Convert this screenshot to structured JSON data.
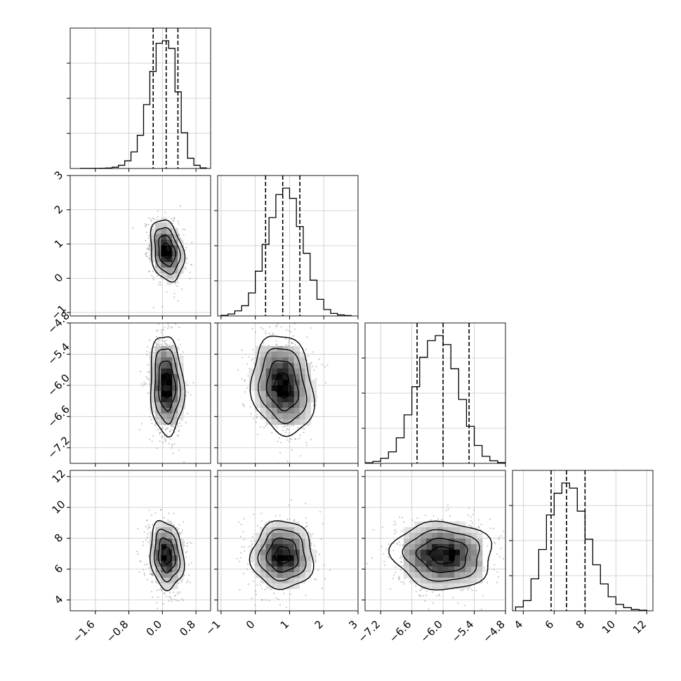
{
  "chart_data": {
    "type": "corner",
    "grid": true,
    "parameters": [
      {
        "range": [
          -2.2,
          1.15
        ],
        "ticks": [
          -1.6,
          -0.8,
          0.0,
          0.8
        ],
        "tick_labels": [
          "−1.6",
          "−0.8",
          "0.0",
          "0.8"
        ],
        "quantiles": [
          -0.22,
          0.09,
          0.37
        ],
        "hist_bins": [
          -1.95,
          -1.8,
          -1.65,
          -1.5,
          -1.35,
          -1.2,
          -1.05,
          -0.9,
          -0.75,
          -0.6,
          -0.45,
          -0.3,
          -0.15,
          0.0,
          0.15,
          0.3,
          0.45,
          0.6,
          0.75,
          0.9,
          1.05
        ],
        "hist_counts": [
          1,
          1,
          1,
          2,
          4,
          10,
          25,
          60,
          130,
          260,
          500,
          760,
          980,
          1000,
          940,
          600,
          280,
          80,
          25,
          5
        ],
        "center": 0.1,
        "spread": 0.2
      },
      {
        "range": [
          -1.1,
          3.0
        ],
        "ticks": [
          -1,
          0,
          1,
          2,
          3
        ],
        "tick_labels": [
          "−1",
          "0",
          "1",
          "2",
          "3"
        ],
        "quantiles": [
          0.3,
          0.8,
          1.3
        ],
        "hist_bins": [
          -1.0,
          -0.8,
          -0.6,
          -0.4,
          -0.2,
          0.0,
          0.2,
          0.4,
          0.6,
          0.8,
          1.0,
          1.2,
          1.4,
          1.6,
          1.8,
          2.0,
          2.2,
          2.4,
          2.6,
          2.8
        ],
        "hist_counts": [
          5,
          15,
          40,
          80,
          180,
          350,
          560,
          770,
          950,
          1000,
          920,
          700,
          490,
          280,
          130,
          50,
          20,
          8,
          3
        ],
        "center": 0.8,
        "spread": 0.45
      },
      {
        "range": [
          -7.5,
          -4.8
        ],
        "ticks": [
          -7.2,
          -6.6,
          -6.0,
          -5.4,
          -4.8
        ],
        "tick_labels": [
          "−7.2",
          "−6.6",
          "−6.0",
          "−5.4",
          "−4.8"
        ],
        "quantiles": [
          -6.5,
          -6.0,
          -5.5
        ],
        "hist_bins": [
          -7.5,
          -7.35,
          -7.2,
          -7.05,
          -6.9,
          -6.75,
          -6.6,
          -6.45,
          -6.3,
          -6.15,
          -6.0,
          -5.85,
          -5.7,
          -5.55,
          -5.4,
          -5.25,
          -5.1,
          -4.95,
          -4.8
        ],
        "hist_counts": [
          5,
          15,
          40,
          90,
          200,
          380,
          600,
          830,
          960,
          1000,
          930,
          740,
          500,
          290,
          140,
          55,
          20,
          6
        ],
        "center": -6.0,
        "spread": 0.48
      },
      {
        "range": [
          3.3,
          12.4
        ],
        "ticks": [
          4,
          6,
          8,
          10,
          12
        ],
        "tick_labels": [
          "4",
          "6",
          "8",
          "10",
          "12"
        ],
        "quantiles": [
          5.8,
          6.8,
          8.0
        ],
        "hist_bins": [
          3.5,
          4.0,
          4.5,
          5.0,
          5.5,
          6.0,
          6.5,
          7.0,
          7.5,
          8.0,
          8.5,
          9.0,
          9.5,
          10.0,
          10.5,
          11.0,
          11.5,
          12.0
        ],
        "hist_counts": [
          30,
          80,
          250,
          480,
          750,
          920,
          1000,
          960,
          780,
          560,
          360,
          210,
          110,
          50,
          25,
          10,
          5
        ],
        "center": 6.9,
        "spread": 1.1
      }
    ],
    "correlations": [
      [
        1.0,
        -0.25,
        -0.1,
        -0.15
      ],
      [
        -0.25,
        1.0,
        -0.15,
        0.0
      ],
      [
        -0.1,
        -0.15,
        1.0,
        -0.05
      ],
      [
        -0.15,
        0.0,
        -0.05,
        1.0
      ]
    ],
    "contour_levels_sigma": [
      0.5,
      1.0,
      1.5,
      2.0
    ]
  }
}
